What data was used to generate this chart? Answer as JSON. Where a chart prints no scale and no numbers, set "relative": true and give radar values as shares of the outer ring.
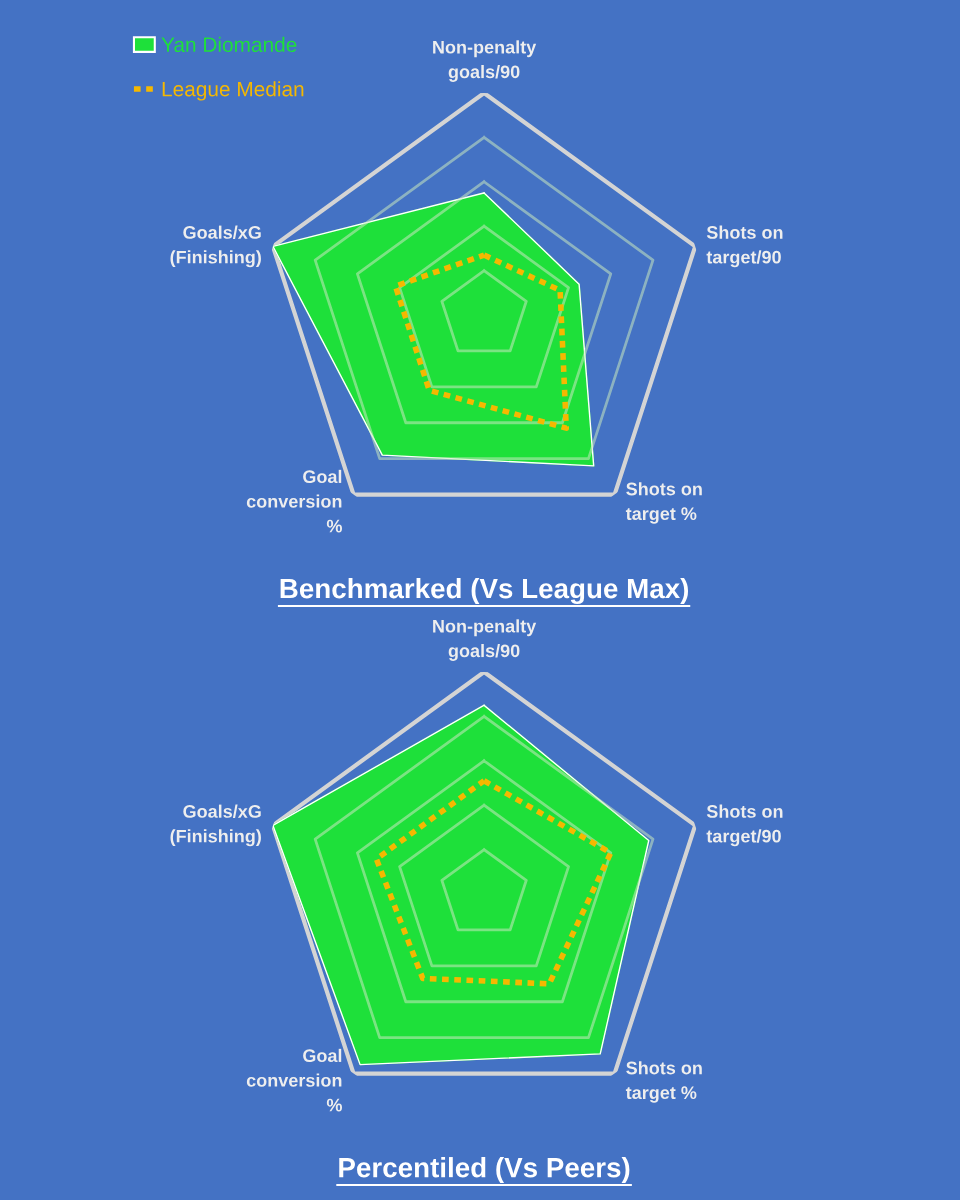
{
  "chart_data": [
    {
      "type": "radar",
      "title": "Benchmarked (Vs League Max)",
      "relative": true,
      "grid": true,
      "legend": "top left",
      "categories": [
        "Non-penalty\ngoals/90",
        "Shots on\ntarget/90",
        "Shots on\ntarget %",
        "Goal\nconversion\n%",
        "Goals/xG\n(Finishing)"
      ],
      "series": [
        {
          "name": "Yan Diomande",
          "color": "#1ee03a",
          "values": [
            0.55,
            0.45,
            0.84,
            0.78,
            1.0
          ]
        },
        {
          "name": "League Median",
          "color": "#f5b800",
          "line_style": "dotted",
          "values": [
            0.27,
            0.36,
            0.63,
            0.42,
            0.42
          ]
        }
      ]
    },
    {
      "type": "radar",
      "title": "Percentiled (Vs Peers)",
      "relative": true,
      "grid": true,
      "categories": [
        "Non-penalty\ngoals/90",
        "Shots on\ntarget/90",
        "Shots on\ntarget %",
        "Goal\nconversion\n%",
        "Goals/xG\n(Finishing)"
      ],
      "series": [
        {
          "color": "#1ee03a",
          "values": [
            0.85,
            0.78,
            0.89,
            0.95,
            1.0
          ]
        },
        {
          "color": "#f5b800",
          "line_style": "dotted",
          "values": [
            0.51,
            0.6,
            0.5,
            0.47,
            0.51
          ]
        }
      ]
    }
  ]
}
